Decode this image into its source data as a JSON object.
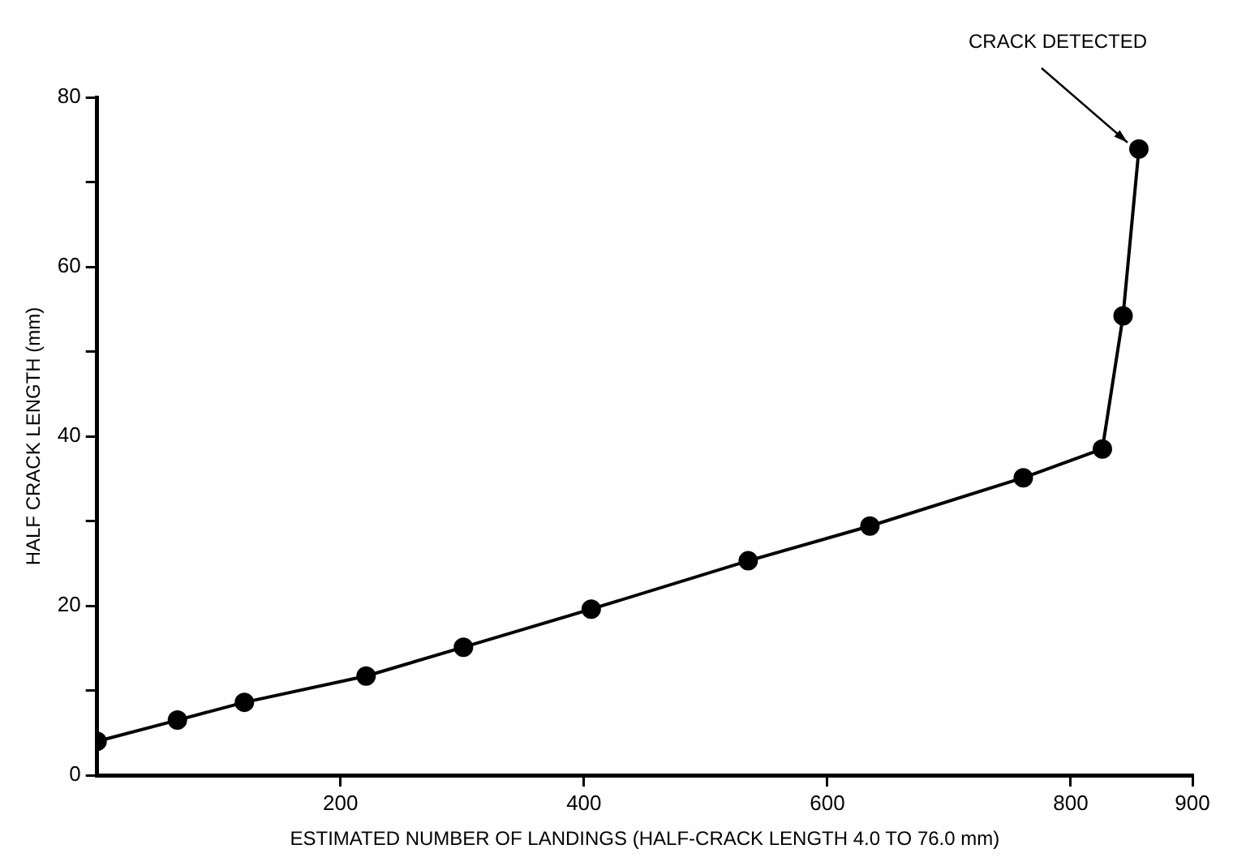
{
  "chart_data": {
    "type": "line",
    "xlabel": "ESTIMATED NUMBER OF LANDINGS (HALF-CRACK LENGTH 4.0 TO 76.0 mm)",
    "ylabel": "HALF CRACK LENGTH (mm)",
    "x": [
      0,
      66,
      121,
      221,
      301,
      406,
      535,
      635,
      761,
      826,
      843,
      856
    ],
    "series": [
      {
        "color": "#000000",
        "values": [
          4.0,
          6.5,
          8.6,
          11.7,
          15.1,
          19.6,
          25.3,
          29.4,
          35.1,
          38.5,
          54.2,
          73.9
        ]
      }
    ],
    "xlim": [
      0,
      900
    ],
    "xticks": [
      200,
      400,
      600,
      800,
      900
    ],
    "ylim": [
      0,
      80
    ],
    "yticks": [
      0,
      {
        "value": 10,
        "label": null
      },
      20,
      {
        "value": 30,
        "label": null
      },
      40,
      {
        "value": 50,
        "label": null
      },
      60,
      {
        "value": 70,
        "label": null
      },
      80
    ],
    "grid": false,
    "legend": false,
    "marker": "circle",
    "line_style": "solid",
    "annotations": [
      {
        "text": "CRACK DETECTED",
        "x": 856,
        "y": 73.9
      }
    ]
  }
}
